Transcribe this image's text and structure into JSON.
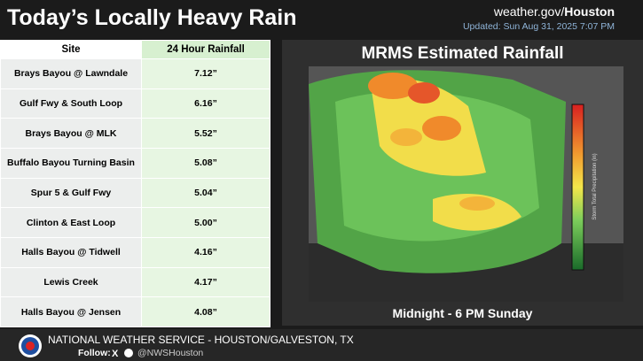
{
  "header": {
    "title": "Today’s Locally Heavy Rain",
    "site_prefix": "weather.gov/",
    "site_office": "Houston",
    "updated": "Updated: Sun Aug 31, 2025 7:07 PM"
  },
  "table": {
    "columns": [
      "Site",
      "24 Hour Rainfall"
    ],
    "rows": [
      [
        "Brays Bayou @ Lawndale",
        "7.12”"
      ],
      [
        "Gulf Fwy & South Loop",
        "6.16”"
      ],
      [
        "Brays Bayou @ MLK",
        "5.52”"
      ],
      [
        "Buffalo Bayou Turning Basin",
        "5.08”"
      ],
      [
        "Spur 5 & Gulf Fwy",
        "5.04”"
      ],
      [
        "Clinton & East Loop",
        "5.00”"
      ],
      [
        "Halls Bayou @ Tidwell",
        "4.16”"
      ],
      [
        "Lewis Creek",
        "4.17”"
      ],
      [
        "Halls Bayou @ Jensen",
        "4.08”"
      ]
    ]
  },
  "map": {
    "title": "MRMS Estimated Rainfall",
    "caption": "Midnight - 6 PM Sunday",
    "legend_title": "Storm Total Precipitation (in)"
  },
  "footer": {
    "agency": "NATIONAL WEATHER SERVICE - HOUSTON/GALVESTON, TX",
    "follow": "Follow:",
    "handle": "@NWSHouston"
  }
}
